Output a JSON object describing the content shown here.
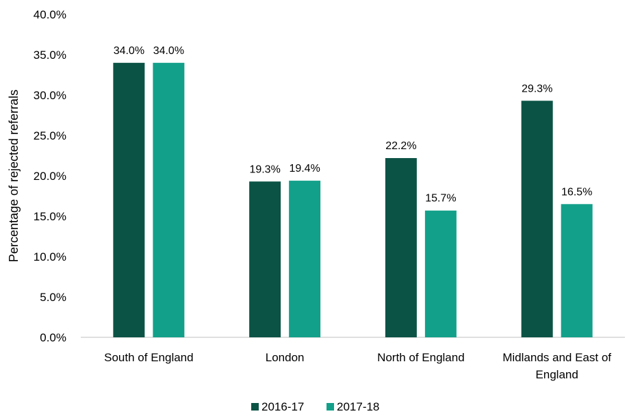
{
  "chart_data": {
    "type": "bar",
    "title": "",
    "xlabel": "",
    "ylabel": "Percentage of rejected referrals",
    "categories": [
      [
        "South of England"
      ],
      [
        "London"
      ],
      [
        "North of England"
      ],
      [
        "Midlands and East of",
        "England"
      ]
    ],
    "series": [
      {
        "name": "2016-17",
        "color": "#0b5345",
        "values": [
          34.0,
          19.3,
          22.2,
          29.3
        ],
        "labels": [
          "34.0%",
          "19.3%",
          "22.2%",
          "29.3%"
        ]
      },
      {
        "name": "2017-18",
        "color": "#13a08a",
        "values": [
          34.0,
          19.4,
          15.7,
          16.5
        ],
        "labels": [
          "34.0%",
          "19.4%",
          "15.7%",
          "16.5%"
        ]
      }
    ],
    "ylim": [
      0,
      40
    ],
    "yticks": [
      "0.0%",
      "5.0%",
      "10.0%",
      "15.0%",
      "20.0%",
      "25.0%",
      "30.0%",
      "35.0%",
      "40.0%"
    ],
    "grid": false,
    "legend_position": "bottom"
  }
}
